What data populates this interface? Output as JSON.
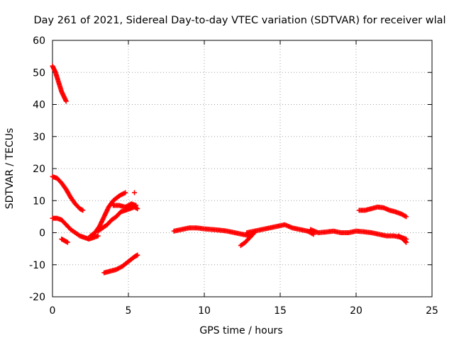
{
  "chart_data": {
    "type": "scatter",
    "title": "Day 261 of 2021, Sidereal Day-to-day VTEC variation (SDTVAR) for receiver wlal",
    "xlabel": "GPS time / hours",
    "ylabel": "SDTVAR / TECUs",
    "xlim": [
      0,
      25
    ],
    "ylim": [
      -20,
      60
    ],
    "xticks": [
      0,
      5,
      10,
      15,
      20,
      25
    ],
    "yticks": [
      -20,
      -10,
      0,
      10,
      20,
      30,
      40,
      50,
      60
    ],
    "grid": true,
    "marker": "+",
    "series_color": "#ff0000",
    "series": [
      {
        "name": "arc-1",
        "x": [
          0.0,
          0.2,
          0.4,
          0.6,
          0.8,
          0.9
        ],
        "y": [
          52,
          50,
          47,
          44,
          42,
          41
        ]
      },
      {
        "name": "arc-2",
        "x": [
          0.0,
          0.3,
          0.6,
          0.9,
          1.2,
          1.5,
          1.8,
          2.0
        ],
        "y": [
          17.5,
          17,
          15.5,
          13.5,
          11,
          9,
          7.5,
          7
        ]
      },
      {
        "name": "arc-3",
        "x": [
          0.0,
          0.3,
          0.6,
          0.9,
          1.2,
          1.5,
          1.8,
          2.1,
          2.4,
          2.7,
          3.0
        ],
        "y": [
          4.5,
          4.5,
          4,
          2.5,
          1,
          0,
          -1,
          -1.5,
          -2,
          -1.5,
          -1
        ]
      },
      {
        "name": "arc-4",
        "x": [
          0.6,
          0.8,
          1.0
        ],
        "y": [
          -2,
          -2.5,
          -3
        ]
      },
      {
        "name": "arc-5",
        "x": [
          2.5,
          2.8,
          3.1,
          3.4,
          3.7,
          4.0,
          4.4,
          4.8
        ],
        "y": [
          -1,
          0,
          2,
          5,
          8,
          10,
          11.5,
          12.5
        ]
      },
      {
        "name": "arc-6",
        "x": [
          3.0,
          3.3,
          3.6,
          3.9,
          4.2,
          4.5,
          4.8,
          5.1,
          5.4,
          5.6
        ],
        "y": [
          0.5,
          1.5,
          2.5,
          4,
          5,
          6.5,
          7,
          7.5,
          8,
          7.5
        ]
      },
      {
        "name": "arc-7",
        "x": [
          4.0,
          4.4,
          4.8,
          5.2,
          5.5
        ],
        "y": [
          8.5,
          8.5,
          8,
          9,
          8.5
        ]
      },
      {
        "name": "arc-8",
        "x": [
          5.4
        ],
        "y": [
          12.5
        ]
      },
      {
        "name": "arc-9",
        "x": [
          3.4,
          3.8,
          4.2,
          4.6,
          5.0,
          5.4,
          5.6
        ],
        "y": [
          -12.5,
          -12,
          -11.5,
          -10.5,
          -9,
          -7.5,
          -7
        ]
      },
      {
        "name": "arc-10",
        "x": [
          8.0,
          8.5,
          9.0,
          9.5,
          10.0,
          10.5,
          11.0,
          11.5,
          12.0,
          12.5,
          13.0
        ],
        "y": [
          0.5,
          1,
          1.5,
          1.5,
          1.2,
          1,
          0.8,
          0.5,
          0,
          -0.5,
          -1
        ]
      },
      {
        "name": "arc-11",
        "x": [
          12.4,
          12.7,
          13.0,
          13.3
        ],
        "y": [
          -4,
          -3,
          -1.5,
          0
        ]
      },
      {
        "name": "arc-12",
        "x": [
          12.8,
          13.3,
          13.8,
          14.3,
          14.8,
          15.3,
          15.8,
          16.3,
          16.8,
          17.2
        ],
        "y": [
          0,
          0.5,
          1,
          1.5,
          2,
          2.5,
          1.5,
          1,
          0.5,
          -0.5
        ]
      },
      {
        "name": "arc-13",
        "x": [
          17.0,
          17.5,
          18.0,
          18.5,
          19.0,
          19.5,
          20.0,
          20.5,
          21.0,
          21.5,
          22.0,
          22.5,
          23.0,
          23.3
        ],
        "y": [
          1,
          0,
          0.2,
          0.5,
          0,
          0,
          0.5,
          0.3,
          0,
          -0.5,
          -1,
          -1,
          -1.5,
          -2
        ]
      },
      {
        "name": "arc-14",
        "x": [
          22.8,
          23.1,
          23.3
        ],
        "y": [
          -1,
          -2,
          -3
        ]
      },
      {
        "name": "arc-15",
        "x": [
          20.2,
          20.6,
          21.0,
          21.4,
          21.8,
          22.2,
          22.6,
          23.0,
          23.3
        ],
        "y": [
          7,
          7,
          7.5,
          8,
          7.8,
          7,
          6.5,
          5.8,
          5
        ]
      }
    ]
  }
}
